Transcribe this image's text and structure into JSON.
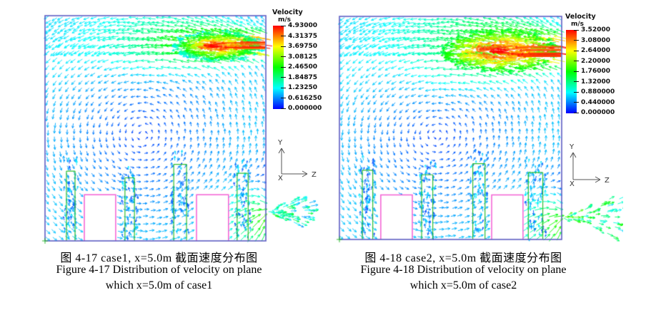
{
  "figure": {
    "panels": [
      {
        "id": "case1",
        "caption_zh": "图 4-17  case1, x=5.0m 截面速度分布图",
        "caption_en_line1": "Figure 4-17 Distribution of velocity on plane",
        "caption_en_line2": "which x=5.0m of case1",
        "legend": {
          "title": "Velocity",
          "units": "m/s"
        },
        "axes": {
          "up": "Y",
          "right": "Z",
          "origin": "X"
        }
      },
      {
        "id": "case2",
        "caption_zh": "图 4-18  case2, x=5.0m 截面速度分布图",
        "caption_en_line1": "Figure 4-18 Distribution of velocity on plane",
        "caption_en_line2": "which x=5.0m of case2",
        "legend": {
          "title": "Velocity",
          "units": "m/s"
        },
        "axes": {
          "up": "Y",
          "right": "Z",
          "origin": "X"
        }
      }
    ]
  },
  "chart_data": [
    {
      "type": "vector-field",
      "title": "case1, x=5.0m cross-section velocity distribution",
      "units": "m/s",
      "vmin": 0.0,
      "vmax": 4.93,
      "legend_ticks": [
        "4.93000",
        "4.31375",
        "3.69750",
        "3.08125",
        "2.46500",
        "1.84875",
        "1.23250",
        "0.616250",
        "0.000000"
      ],
      "axes": {
        "vertical": "Y",
        "horizontal": "Z",
        "out_of_plane": "X"
      },
      "colors": {
        "domain_outline": "#5e5ec4",
        "obstacle_outline": "#f45fd4",
        "vegetation": "#2fbf2f",
        "colormap_top_to_bottom": [
          "#ff0000",
          "#ffff00",
          "#00ff00",
          "#00ffff",
          "#0000ff"
        ]
      },
      "features": {
        "ceiling_jet": {
          "enters_from": "right wall near ceiling",
          "direction": "leftward",
          "peak_mps": 4.93
        },
        "outlet": {
          "wall": "right",
          "height_frac_from_top": 0.87
        },
        "recirculation": "down along left wall, rightward along floor, up along right wall",
        "obstacles_u": [
          [
            0.178,
            0.32
          ],
          [
            0.686,
            0.831
          ]
        ],
        "obstacle_top_v": 0.795,
        "vegetation_uv": [
          [
            0.097,
            0.136,
            0.69
          ],
          [
            0.362,
            0.405,
            0.72
          ],
          [
            0.583,
            0.641,
            0.66
          ],
          [
            0.87,
            0.92,
            0.7
          ]
        ]
      },
      "render": {
        "dom_w": 309,
        "dom_h": 316,
        "jet_y": 0.13,
        "jet_sig0": 0.035,
        "jet_spread": 0.11,
        "jet_strength": 1.0,
        "jet_blob": [
          0.8,
          0.135,
          0.21,
          0.068
        ],
        "blob_n": 340,
        "blob_core": 0.8,
        "out_y": 0.87,
        "fan_len": 62,
        "fan_t": 0.4,
        "seed": 7
      }
    },
    {
      "type": "vector-field",
      "title": "case2, x=5.0m cross-section velocity distribution",
      "units": "m/s",
      "vmin": 0.0,
      "vmax": 3.52,
      "legend_ticks": [
        "3.52000",
        "3.08000",
        "2.64000",
        "2.20000",
        "1.76000",
        "1.32000",
        "0.880000",
        "0.440000",
        "0.000000"
      ],
      "axes": {
        "vertical": "Y",
        "horizontal": "Z",
        "out_of_plane": "X"
      },
      "colors": {
        "domain_outline": "#5e5ec4",
        "obstacle_outline": "#f45fd4",
        "vegetation": "#2fbf2f",
        "colormap_top_to_bottom": [
          "#ff0000",
          "#ffff00",
          "#00ff00",
          "#00ffff",
          "#0000ff"
        ]
      },
      "features": {
        "ceiling_jet": {
          "enters_from": "right wall near ceiling",
          "direction": "leftward",
          "peak_mps": 3.52
        },
        "outlet": {
          "wall": "right",
          "height_frac_from_top": 0.9
        },
        "recirculation": "down along left wall, rightward along floor, up along right wall",
        "obstacles_u": [
          [
            0.186,
            0.328
          ],
          [
            0.685,
            0.826
          ]
        ],
        "obstacle_top_v": 0.8,
        "vegetation_uv": [
          [
            0.103,
            0.15,
            0.69
          ],
          [
            0.37,
            0.42,
            0.71
          ],
          [
            0.6,
            0.655,
            0.66
          ],
          [
            0.85,
            0.915,
            0.7
          ]
        ]
      },
      "render": {
        "dom_w": 311,
        "dom_h": 313,
        "jet_y": 0.15,
        "jet_sig0": 0.05,
        "jet_spread": 0.16,
        "jet_strength": 1.0,
        "jet_blob": [
          0.74,
          0.155,
          0.27,
          0.095
        ],
        "blob_n": 470,
        "blob_core": 0.62,
        "out_y": 0.9,
        "fan_len": 92,
        "fan_t": 0.46,
        "seed": 11
      }
    }
  ]
}
